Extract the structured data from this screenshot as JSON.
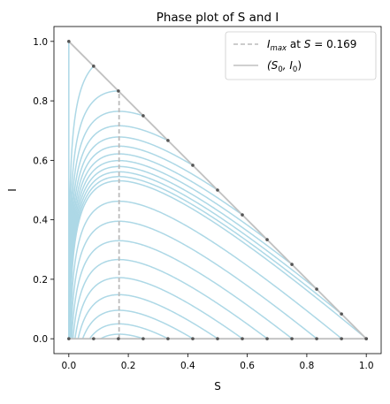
{
  "chart_data": {
    "type": "line",
    "title": "Phase plot of S and I",
    "xlabel": "S",
    "ylabel": "I",
    "xlim": [
      -0.05,
      1.05
    ],
    "ylim": [
      -0.05,
      1.05
    ],
    "x_ticks": [
      0.0,
      0.2,
      0.4,
      0.6,
      0.8,
      1.0
    ],
    "x_tick_labels": [
      "0.0",
      "0.2",
      "0.4",
      "0.6",
      "0.8",
      "1.0"
    ],
    "y_ticks": [
      0.0,
      0.2,
      0.4,
      0.6,
      0.8,
      1.0
    ],
    "y_tick_labels": [
      "0.0",
      "0.2",
      "0.4",
      "0.6",
      "0.8",
      "1.0"
    ],
    "grid": false,
    "legend_position": "top-right",
    "threshold_S": 0.169,
    "initial_S0": [
      0.0,
      0.0833,
      0.1667,
      0.25,
      0.3333,
      0.4167,
      0.5,
      0.5833,
      0.6667,
      0.75,
      0.8333,
      0.9167,
      1.0
    ],
    "initial_I0_upper": [
      1.0,
      0.9167,
      0.8333,
      0.75,
      0.6667,
      0.5833,
      0.5,
      0.4167,
      0.3333,
      0.25,
      0.1667,
      0.0833,
      0.0
    ],
    "initial_I0_lower": [
      0.0,
      0.0,
      0.0,
      0.0,
      0.0,
      0.0,
      0.0,
      0.0,
      0.0,
      0.0,
      0.0,
      0.0,
      0.0
    ],
    "series": [
      {
        "name": "I_max at S = 0.169",
        "style": "dashed",
        "color": "#bbbbbb",
        "x": [
          0.169,
          0.169
        ],
        "y": [
          0.0,
          0.8331
        ]
      },
      {
        "name": "(S0, I0)",
        "style": "solid",
        "color": "#c0c0c0",
        "x": [
          0.0,
          1.0
        ],
        "y": [
          1.0,
          0.0
        ]
      }
    ],
    "trajectory_color": "#add8e6",
    "legend": [
      {
        "prefix": "I",
        "sub": "max",
        "middle": " at ",
        "var": "S",
        "suffix": " = 0.169",
        "style": "dashed"
      },
      {
        "prefix": "(S",
        "sub": "0",
        "middle": ", I",
        "var": "0",
        "suffix": ")",
        "style": "solid"
      }
    ]
  }
}
